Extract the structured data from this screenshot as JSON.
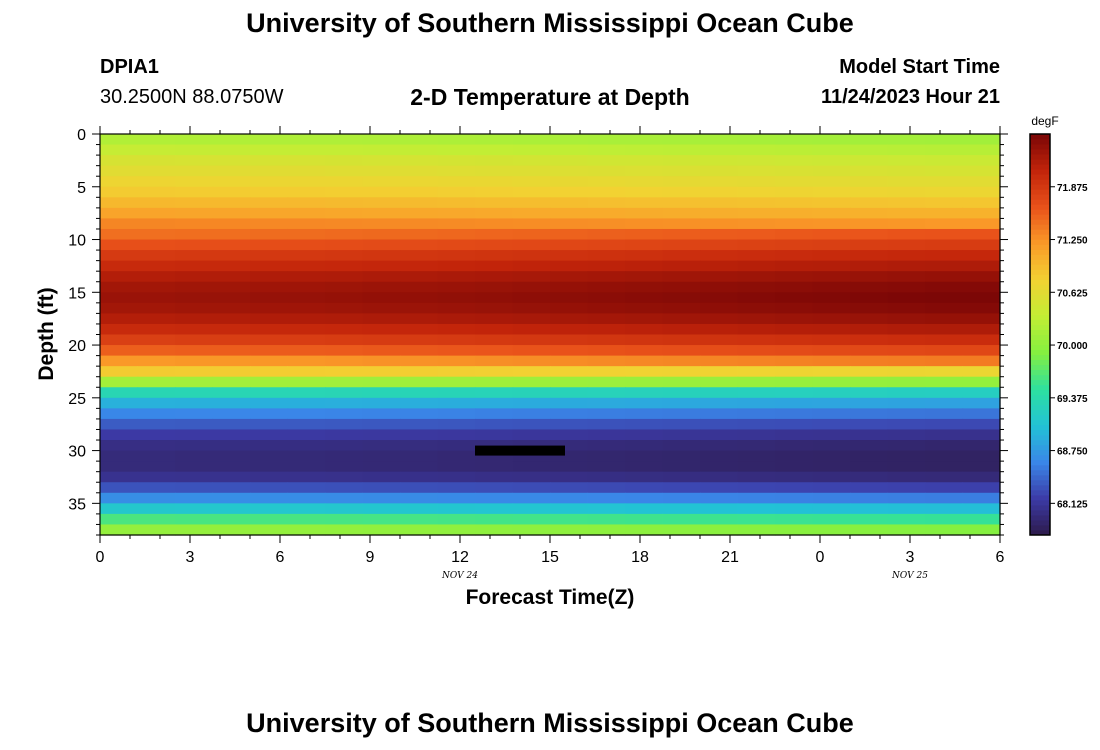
{
  "header": {
    "title": "University of Southern Mississippi Ocean Cube",
    "station_id": "DPIA1",
    "station_coords": "30.2500N  88.0750W",
    "chart_title": "2-D Temperature at Depth",
    "start_label": "Model Start Time",
    "start_value": "11/24/2023 Hour 21"
  },
  "footer": {
    "title": "University of Southern Mississippi Ocean Cube"
  },
  "chart_data": {
    "type": "heatmap",
    "title": "2-D Temperature at Depth",
    "xlabel": "Forecast Time(Z)",
    "ylabel": "Depth (ft)",
    "x_tick_labels": [
      "0",
      "3",
      "6",
      "9",
      "12",
      "15",
      "18",
      "21",
      "0",
      "3",
      "6"
    ],
    "x_date_labels": [
      {
        "label": "NOV 24",
        "at_tick": 4
      },
      {
        "label": "NOV 25",
        "at_tick": 9
      }
    ],
    "y_ticks": [
      0,
      5,
      10,
      15,
      20,
      25,
      30,
      35
    ],
    "ylim": [
      0,
      38
    ],
    "y_inverted": true,
    "colorbar": {
      "unit": "degF",
      "min": 67.75,
      "max": 72.5,
      "tick_labels": [
        "71.875",
        "71.250",
        "70.625",
        "70.000",
        "69.375",
        "68.750",
        "68.125"
      ],
      "tick_values": [
        71.875,
        71.25,
        70.625,
        70.0,
        69.375,
        68.75,
        68.125
      ],
      "colors": [
        "#2d1a4a",
        "#3c3aa6",
        "#3a86e8",
        "#22c2d6",
        "#2de0a0",
        "#84f040",
        "#c2ee34",
        "#f2d232",
        "#fa9a28",
        "#e9521a",
        "#c2240a",
        "#7a0606"
      ]
    },
    "depth_levels": [
      0,
      1,
      2,
      3,
      4,
      5,
      6,
      7,
      8,
      9,
      10,
      11,
      12,
      13,
      14,
      15,
      16,
      17,
      18,
      19,
      20,
      21,
      22,
      23,
      24,
      25,
      26,
      27,
      28,
      29,
      30,
      31,
      32,
      33,
      34,
      35,
      36,
      37
    ],
    "profile_temps": [
      70.2,
      70.35,
      70.5,
      70.6,
      70.7,
      70.8,
      70.95,
      71.1,
      71.3,
      71.5,
      71.7,
      71.9,
      72.05,
      72.2,
      72.3,
      72.35,
      72.3,
      72.2,
      72.05,
      71.85,
      71.6,
      71.25,
      70.8,
      70.1,
      69.3,
      68.9,
      68.6,
      68.35,
      68.15,
      68.0,
      67.95,
      67.95,
      68.05,
      68.3,
      68.65,
      69.1,
      69.6,
      70.0
    ],
    "time_offsets": [
      -0.04,
      -0.04,
      -0.03,
      -0.03,
      -0.02,
      -0.02,
      -0.01,
      0.0,
      0.0,
      0.01,
      0.02,
      0.03,
      0.04,
      0.05,
      0.06,
      0.07,
      0.08,
      0.09,
      0.1,
      0.11,
      0.12,
      0.13,
      0.14,
      0.14
    ],
    "marker": {
      "x_start": 12.5,
      "x_end": 15.5,
      "y": 30
    }
  }
}
